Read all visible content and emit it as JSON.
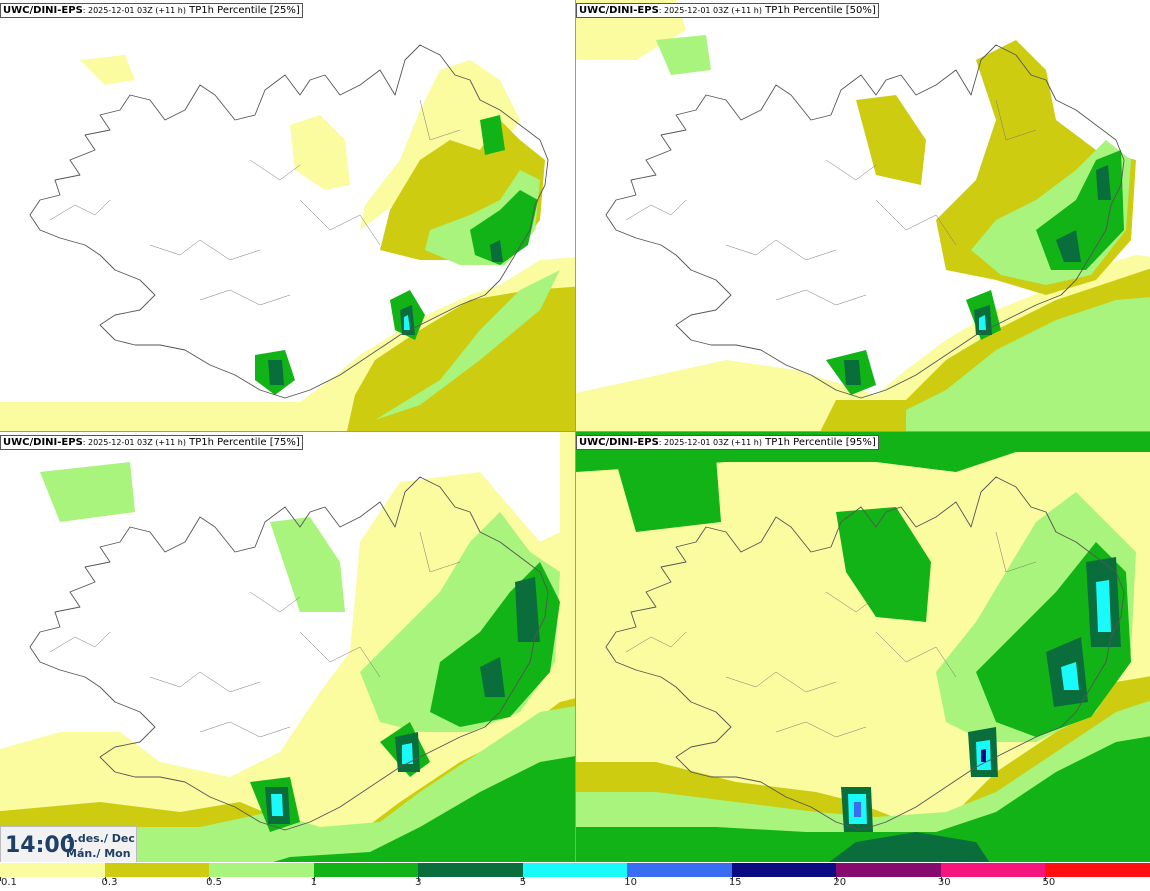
{
  "panels": [
    {
      "model": "UWC/DINI-EPS",
      "run": ": 2025-12-01 03Z (+11 h)",
      "field": " TP1h Percentile [25%]"
    },
    {
      "model": "UWC/DINI-EPS",
      "run": ": 2025-12-01 03Z (+11 h)",
      "field": " TP1h Percentile [50%]"
    },
    {
      "model": "UWC/DINI-EPS",
      "run": ": 2025-12-01 03Z (+11 h)",
      "field": " TP1h Percentile [75%]"
    },
    {
      "model": "UWC/DINI-EPS",
      "run": ": 2025-12-01 03Z (+11 h)",
      "field": " TP1h Percentile [95%]"
    }
  ],
  "valid_time": {
    "time": "14:00",
    "date_line1": "1.des./ Dec",
    "date_line2": "Mán./ Mon"
  },
  "legend": {
    "labels": [
      "0.1",
      "0.3",
      "0.5",
      "1",
      "3",
      "5",
      "10",
      "15",
      "20",
      "30",
      "50"
    ],
    "colors": [
      "#fbfba0",
      "#cdcc10",
      "#a8f47c",
      "#11b316",
      "#0a6e3c",
      "#19fafa",
      "#3a6ef2",
      "#0a0a82",
      "#860a6e",
      "#f5157c",
      "#ff0f0f"
    ]
  },
  "colors": {
    "land_outline": "#555555",
    "level_0_1": "#fbfba0",
    "level_0_3": "#cdcc10",
    "level_0_5": "#a8f47c",
    "level_1": "#11b316",
    "level_3": "#0a6e3c",
    "level_5": "#19fafa",
    "level_10": "#3a6ef2",
    "level_15": "#0a0a82"
  }
}
